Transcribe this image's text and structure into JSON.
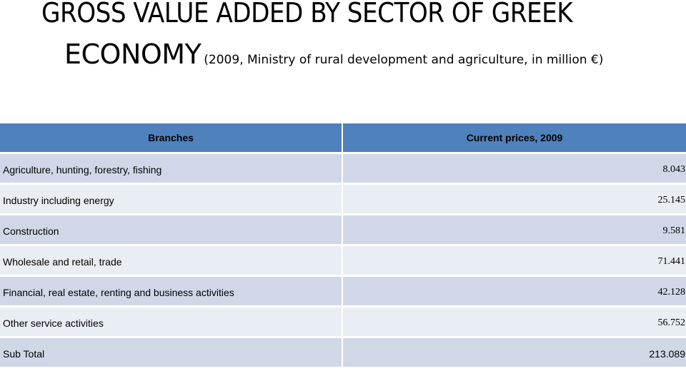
{
  "slide": {
    "title_line1": "GROSS VALUE ADDED BY SECTOR OF GREEK",
    "title_line2": "ECONOMY",
    "title_sub": "(2009, Ministry of rural development and agriculture, in million €)"
  },
  "table": {
    "headers": [
      "Branches",
      "Current prices, 2009"
    ],
    "rows": [
      {
        "branch": "Agriculture, hunting, forestry, fishing",
        "value": "8.043"
      },
      {
        "branch": "Industry including energy",
        "value": "25.145"
      },
      {
        "branch": "Construction",
        "value": "9.581"
      },
      {
        "branch": "Wholesale and retail, trade",
        "value": "71.441"
      },
      {
        "branch": "Financial, real estate, renting and business activities",
        "value": "42.128"
      },
      {
        "branch": "Other service activities",
        "value": "56.752"
      },
      {
        "branch": "Sub Total",
        "value": "213.089"
      }
    ]
  },
  "colors": {
    "header_bg": "#4f81bd",
    "row_odd_bg": "#d0d8e8",
    "row_even_bg": "#e9edf4"
  }
}
